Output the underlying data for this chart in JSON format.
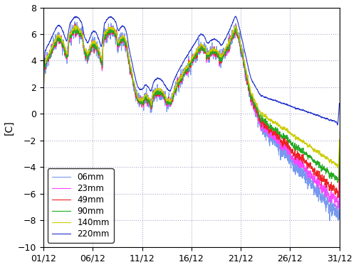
{
  "ylabel": "[C]",
  "ylim": [
    -10,
    8
  ],
  "yticks": [
    -10,
    -8,
    -6,
    -4,
    -2,
    0,
    2,
    4,
    6,
    8
  ],
  "xtick_labels": [
    "01/12",
    "06/12",
    "11/12",
    "16/12",
    "21/12",
    "26/12",
    "31/12"
  ],
  "xtick_positions": [
    0,
    5,
    10,
    15,
    20,
    25,
    30
  ],
  "lines": [
    {
      "label": "06mm",
      "color": "#7799EE"
    },
    {
      "label": "23mm",
      "color": "#FF44FF"
    },
    {
      "label": "49mm",
      "color": "#EE2222"
    },
    {
      "label": "90mm",
      "color": "#22AA22"
    },
    {
      "label": "140mm",
      "color": "#CCCC00"
    },
    {
      "label": "220mm",
      "color": "#2233CC"
    }
  ],
  "grid_color": "#AAAACC",
  "bg_color": "#FFFFFF",
  "fig_bg": "#FFFFFF"
}
